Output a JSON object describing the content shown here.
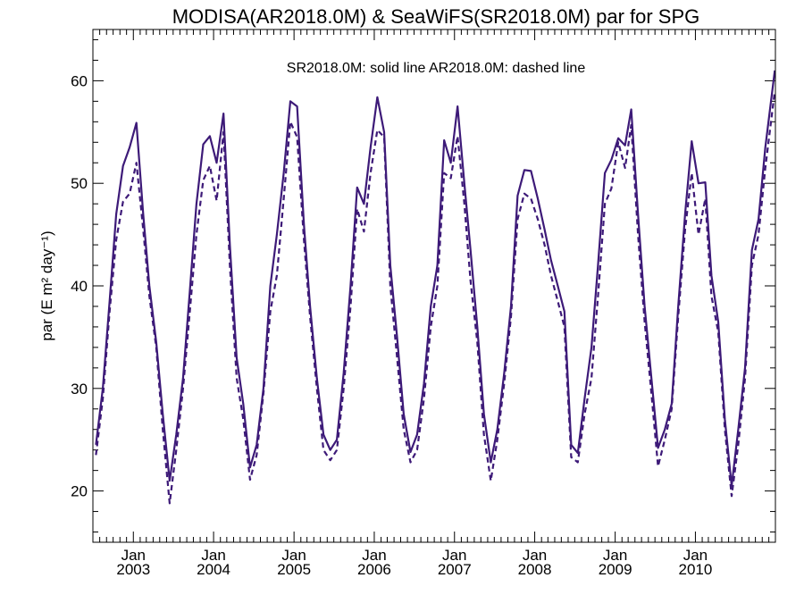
{
  "chart_data": {
    "type": "line",
    "title": "MODISA(AR2018.0M) & SeaWiFS(SR2018.0M)  par for SPG",
    "annotation": "SR2018.0M: solid line   AR2018.0M: dashed line",
    "ylabel": "par (E m² day⁻¹)",
    "xlabel": "",
    "ylim": [
      15,
      65
    ],
    "xlim": [
      "2002-07-01",
      "2010-12-31"
    ],
    "y_ticks": [
      20,
      30,
      40,
      50,
      60
    ],
    "x_ticks": [
      {
        "date": "2003-01-01",
        "month": "Jan",
        "year": "2003"
      },
      {
        "date": "2004-01-01",
        "month": "Jan",
        "year": "2004"
      },
      {
        "date": "2005-01-01",
        "month": "Jan",
        "year": "2005"
      },
      {
        "date": "2006-01-01",
        "month": "Jan",
        "year": "2006"
      },
      {
        "date": "2007-01-01",
        "month": "Jan",
        "year": "2007"
      },
      {
        "date": "2008-01-01",
        "month": "Jan",
        "year": "2008"
      },
      {
        "date": "2009-01-01",
        "month": "Jan",
        "year": "2009"
      },
      {
        "date": "2010-01-01",
        "month": "Jan",
        "year": "2010"
      }
    ],
    "grid": false,
    "line_color": "#3d1a78",
    "series": [
      {
        "name": "SR2018.0M",
        "style": "solid",
        "points": [
          [
            "2002-07-15",
            24.5
          ],
          [
            "2002-08-15",
            30.0
          ],
          [
            "2002-09-15",
            38.5
          ],
          [
            "2002-10-15",
            47.0
          ],
          [
            "2002-11-15",
            51.7
          ],
          [
            "2002-12-15",
            53.5
          ],
          [
            "2003-01-15",
            55.9
          ],
          [
            "2003-02-15",
            47.0
          ],
          [
            "2003-03-15",
            40.0
          ],
          [
            "2003-04-15",
            34.5
          ],
          [
            "2003-05-15",
            27.5
          ],
          [
            "2003-06-15",
            21.0
          ],
          [
            "2003-07-15",
            25.5
          ],
          [
            "2003-08-15",
            31.0
          ],
          [
            "2003-09-15",
            39.5
          ],
          [
            "2003-10-15",
            48.0
          ],
          [
            "2003-11-15",
            53.8
          ],
          [
            "2003-12-15",
            54.6
          ],
          [
            "2004-01-15",
            52.0
          ],
          [
            "2004-02-15",
            56.8
          ],
          [
            "2004-03-15",
            44.0
          ],
          [
            "2004-04-15",
            33.0
          ],
          [
            "2004-05-15",
            28.5
          ],
          [
            "2004-06-15",
            22.3
          ],
          [
            "2004-07-15",
            24.5
          ],
          [
            "2004-08-15",
            30.0
          ],
          [
            "2004-09-15",
            40.0
          ],
          [
            "2004-10-15",
            45.0
          ],
          [
            "2004-11-15",
            51.0
          ],
          [
            "2004-12-15",
            58.0
          ],
          [
            "2005-01-15",
            57.5
          ],
          [
            "2005-02-15",
            46.0
          ],
          [
            "2005-03-15",
            38.0
          ],
          [
            "2005-04-15",
            31.0
          ],
          [
            "2005-05-15",
            25.5
          ],
          [
            "2005-06-15",
            24.0
          ],
          [
            "2005-07-15",
            25.0
          ],
          [
            "2005-08-15",
            31.5
          ],
          [
            "2005-09-15",
            40.0
          ],
          [
            "2005-10-15",
            49.6
          ],
          [
            "2005-11-15",
            48.0
          ],
          [
            "2005-12-15",
            53.5
          ],
          [
            "2006-01-15",
            58.4
          ],
          [
            "2006-02-15",
            55.0
          ],
          [
            "2006-03-15",
            42.0
          ],
          [
            "2006-04-15",
            35.0
          ],
          [
            "2006-05-15",
            27.5
          ],
          [
            "2006-06-15",
            23.8
          ],
          [
            "2006-07-15",
            25.5
          ],
          [
            "2006-08-15",
            30.5
          ],
          [
            "2006-09-15",
            38.0
          ],
          [
            "2006-10-15",
            42.0
          ],
          [
            "2006-11-15",
            54.2
          ],
          [
            "2006-12-15",
            52.0
          ],
          [
            "2007-01-15",
            57.5
          ],
          [
            "2007-02-15",
            50.0
          ],
          [
            "2007-03-15",
            43.5
          ],
          [
            "2007-04-15",
            36.0
          ],
          [
            "2007-05-15",
            27.5
          ],
          [
            "2007-06-15",
            22.8
          ],
          [
            "2007-07-15",
            26.0
          ],
          [
            "2007-08-15",
            31.5
          ],
          [
            "2007-09-15",
            38.0
          ],
          [
            "2007-10-15",
            48.8
          ],
          [
            "2007-11-15",
            51.3
          ],
          [
            "2007-12-15",
            51.2
          ],
          [
            "2008-01-15",
            48.5
          ],
          [
            "2008-02-15",
            45.5
          ],
          [
            "2008-03-15",
            42.5
          ],
          [
            "2008-04-15",
            40.0
          ],
          [
            "2008-05-15",
            37.5
          ],
          [
            "2008-06-15",
            24.5
          ],
          [
            "2008-07-15",
            23.7
          ],
          [
            "2008-08-15",
            29.0
          ],
          [
            "2008-09-15",
            34.0
          ],
          [
            "2008-10-15",
            42.0
          ],
          [
            "2008-11-15",
            51.0
          ],
          [
            "2008-12-15",
            52.3
          ],
          [
            "2009-01-15",
            54.4
          ],
          [
            "2009-02-15",
            53.7
          ],
          [
            "2009-03-15",
            57.2
          ],
          [
            "2009-04-15",
            47.0
          ],
          [
            "2009-05-15",
            38.0
          ],
          [
            "2009-06-15",
            31.0
          ],
          [
            "2009-07-15",
            24.2
          ],
          [
            "2009-08-15",
            26.0
          ],
          [
            "2009-09-15",
            28.5
          ],
          [
            "2009-10-15",
            38.0
          ],
          [
            "2009-11-15",
            47.0
          ],
          [
            "2009-12-15",
            54.1
          ],
          [
            "2010-01-15",
            50.0
          ],
          [
            "2010-02-15",
            50.1
          ],
          [
            "2010-03-15",
            41.0
          ],
          [
            "2010-04-15",
            36.5
          ],
          [
            "2010-05-15",
            27.0
          ],
          [
            "2010-06-15",
            20.5
          ],
          [
            "2010-07-15",
            26.0
          ],
          [
            "2010-08-15",
            32.0
          ],
          [
            "2010-09-15",
            43.5
          ],
          [
            "2010-10-15",
            46.5
          ],
          [
            "2010-11-15",
            53.5
          ],
          [
            "2010-12-28",
            61.0
          ]
        ]
      },
      {
        "name": "AR2018.0M",
        "style": "dashed",
        "points": [
          [
            "2002-07-15",
            23.5
          ],
          [
            "2002-08-15",
            29.0
          ],
          [
            "2002-09-15",
            37.5
          ],
          [
            "2002-10-15",
            44.5
          ],
          [
            "2002-11-15",
            48.2
          ],
          [
            "2002-12-15",
            49.0
          ],
          [
            "2003-01-15",
            52.0
          ],
          [
            "2003-02-15",
            45.5
          ],
          [
            "2003-03-15",
            39.0
          ],
          [
            "2003-04-15",
            34.0
          ],
          [
            "2003-05-15",
            26.0
          ],
          [
            "2003-06-15",
            18.8
          ],
          [
            "2003-07-15",
            24.0
          ],
          [
            "2003-08-15",
            30.0
          ],
          [
            "2003-09-15",
            37.5
          ],
          [
            "2003-10-15",
            45.0
          ],
          [
            "2003-11-15",
            50.3
          ],
          [
            "2003-12-15",
            51.7
          ],
          [
            "2004-01-15",
            48.3
          ],
          [
            "2004-02-15",
            55.0
          ],
          [
            "2004-03-15",
            42.0
          ],
          [
            "2004-04-15",
            31.0
          ],
          [
            "2004-05-15",
            27.0
          ],
          [
            "2004-06-15",
            21.1
          ],
          [
            "2004-07-15",
            23.5
          ],
          [
            "2004-08-15",
            29.5
          ],
          [
            "2004-09-15",
            37.5
          ],
          [
            "2004-10-15",
            41.0
          ],
          [
            "2004-11-15",
            48.5
          ],
          [
            "2004-12-15",
            56.0
          ],
          [
            "2005-01-15",
            54.5
          ],
          [
            "2005-02-15",
            44.5
          ],
          [
            "2005-03-15",
            37.0
          ],
          [
            "2005-04-15",
            30.0
          ],
          [
            "2005-05-15",
            24.0
          ],
          [
            "2005-06-15",
            23.0
          ],
          [
            "2005-07-15",
            24.0
          ],
          [
            "2005-08-15",
            30.0
          ],
          [
            "2005-09-15",
            38.0
          ],
          [
            "2005-10-15",
            47.5
          ],
          [
            "2005-11-15",
            45.3
          ],
          [
            "2005-12-15",
            51.0
          ],
          [
            "2006-01-15",
            55.2
          ],
          [
            "2006-02-15",
            54.5
          ],
          [
            "2006-03-15",
            40.0
          ],
          [
            "2006-04-15",
            33.0
          ],
          [
            "2006-05-15",
            26.0
          ],
          [
            "2006-06-15",
            22.8
          ],
          [
            "2006-07-15",
            24.0
          ],
          [
            "2006-08-15",
            29.0
          ],
          [
            "2006-09-15",
            36.0
          ],
          [
            "2006-10-15",
            40.0
          ],
          [
            "2006-11-15",
            51.0
          ],
          [
            "2006-12-15",
            50.5
          ],
          [
            "2007-01-15",
            54.6
          ],
          [
            "2007-02-15",
            48.0
          ],
          [
            "2007-03-15",
            40.5
          ],
          [
            "2007-04-15",
            34.5
          ],
          [
            "2007-05-15",
            25.5
          ],
          [
            "2007-06-15",
            21.0
          ],
          [
            "2007-07-15",
            25.0
          ],
          [
            "2007-08-15",
            30.5
          ],
          [
            "2007-09-15",
            37.0
          ],
          [
            "2007-10-15",
            46.5
          ],
          [
            "2007-11-15",
            49.0
          ],
          [
            "2007-12-15",
            48.5
          ],
          [
            "2008-01-15",
            46.5
          ],
          [
            "2008-02-15",
            44.0
          ],
          [
            "2008-03-15",
            41.0
          ],
          [
            "2008-04-15",
            38.5
          ],
          [
            "2008-05-15",
            36.0
          ],
          [
            "2008-06-15",
            23.3
          ],
          [
            "2008-07-15",
            22.8
          ],
          [
            "2008-08-15",
            27.5
          ],
          [
            "2008-09-15",
            31.0
          ],
          [
            "2008-10-15",
            39.0
          ],
          [
            "2008-11-15",
            48.0
          ],
          [
            "2008-12-15",
            49.5
          ],
          [
            "2009-01-15",
            54.0
          ],
          [
            "2009-02-15",
            51.5
          ],
          [
            "2009-03-15",
            55.7
          ],
          [
            "2009-04-15",
            45.0
          ],
          [
            "2009-05-15",
            36.5
          ],
          [
            "2009-06-15",
            29.5
          ],
          [
            "2009-07-15",
            22.4
          ],
          [
            "2009-08-15",
            25.0
          ],
          [
            "2009-09-15",
            28.0
          ],
          [
            "2009-10-15",
            37.0
          ],
          [
            "2009-11-15",
            45.5
          ],
          [
            "2009-12-15",
            51.0
          ],
          [
            "2010-01-15",
            45.0
          ],
          [
            "2010-02-15",
            48.5
          ],
          [
            "2010-03-15",
            39.0
          ],
          [
            "2010-04-15",
            35.5
          ],
          [
            "2010-05-15",
            26.0
          ],
          [
            "2010-06-15",
            19.5
          ],
          [
            "2010-07-15",
            24.5
          ],
          [
            "2010-08-15",
            31.0
          ],
          [
            "2010-09-15",
            42.0
          ],
          [
            "2010-10-15",
            45.0
          ],
          [
            "2010-11-15",
            51.5
          ],
          [
            "2010-12-28",
            59.0
          ]
        ]
      }
    ]
  }
}
